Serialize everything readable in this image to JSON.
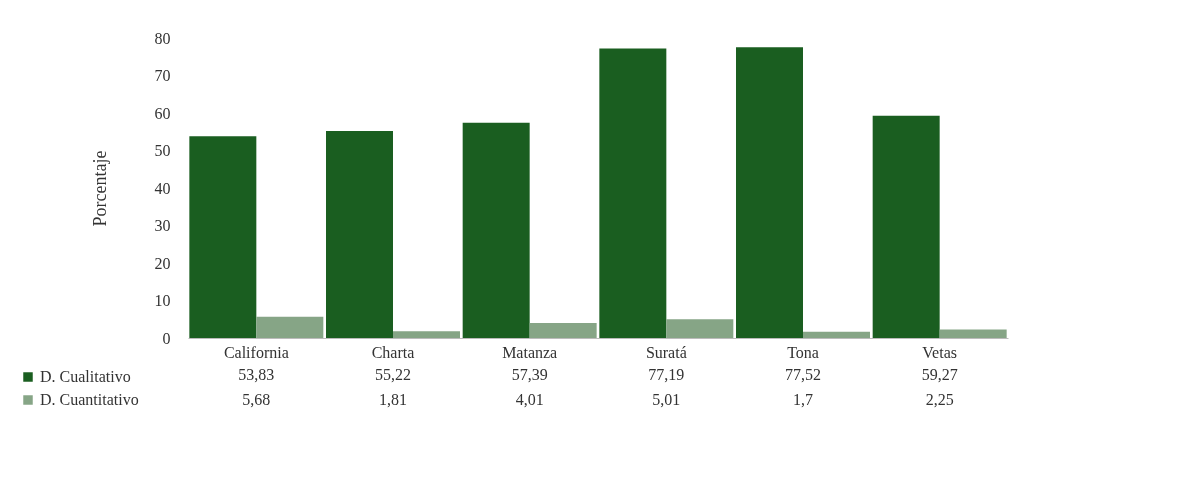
{
  "chart_data": {
    "type": "bar",
    "ylabel": "Porcentaje",
    "categories": [
      "California",
      "Charta",
      "Matanza",
      "Suratá",
      "Tona",
      "Vetas"
    ],
    "series": [
      {
        "name": "D. Cualitativo",
        "color": "#1a5e20",
        "values": [
          53.83,
          55.22,
          57.39,
          77.19,
          77.52,
          59.27
        ],
        "value_labels": [
          "53,83",
          "55,22",
          "57,39",
          "77,19",
          "77,52",
          "59,27"
        ]
      },
      {
        "name": "D. Cuantitativo",
        "color": "#86a586",
        "values": [
          5.68,
          1.81,
          4.01,
          5.01,
          1.7,
          2.25
        ],
        "value_labels": [
          "5,68",
          "1,81",
          "4,01",
          "5,01",
          "1,7",
          "2,25"
        ]
      }
    ],
    "ylim": [
      0,
      80
    ],
    "yticks": [
      0,
      10,
      20,
      30,
      40,
      50,
      60,
      70,
      80
    ],
    "legend": "bottom",
    "grid": false
  }
}
